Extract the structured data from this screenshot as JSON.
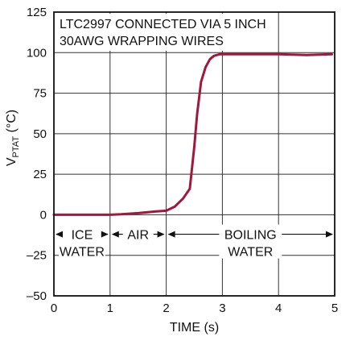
{
  "chart_data": {
    "type": "line",
    "title_lines": [
      "LTC2997 CONNECTED VIA 5 INCH",
      "30AWG WRAPPING WIRES"
    ],
    "xlabel": "TIME (s)",
    "ylabel": {
      "main": "V",
      "sub": "PTAT",
      "unit": " (°C)"
    },
    "xlim": [
      0,
      5
    ],
    "ylim": [
      -50,
      125
    ],
    "xticks": [
      0,
      1,
      2,
      3,
      4,
      5
    ],
    "xtick_labels": [
      "0",
      "1",
      "2",
      "3",
      "4",
      "5"
    ],
    "yticks": [
      -50,
      -25,
      0,
      25,
      50,
      75,
      100,
      125
    ],
    "ytick_labels": [
      "–50",
      "–25",
      "0",
      "25",
      "50",
      "75",
      "100",
      "125"
    ],
    "grid": true,
    "series": [
      {
        "color": "#a0183c",
        "x": [
          0,
          0.5,
          1.0,
          1.2,
          1.5,
          1.8,
          2.0,
          2.15,
          2.3,
          2.42,
          2.5,
          2.55,
          2.62,
          2.7,
          2.78,
          2.85,
          2.95,
          3.05,
          3.3,
          3.6,
          4.0,
          4.5,
          4.95
        ],
        "y": [
          0,
          0,
          0,
          0.3,
          1,
          2,
          2.5,
          5,
          10,
          16,
          42,
          62,
          82,
          91,
          96,
          98,
          99,
          99,
          99,
          99,
          99,
          98.5,
          99
        ]
      }
    ],
    "annotations": [
      {
        "label_lines": [
          "ICE",
          "WATER"
        ],
        "x_range": [
          0,
          1
        ]
      },
      {
        "label_lines": [
          "AIR"
        ],
        "x_range": [
          1,
          2
        ]
      },
      {
        "label_lines": [
          "BOILING",
          "WATER"
        ],
        "x_range": [
          2,
          5
        ]
      }
    ],
    "colors": {
      "series": "#a0183c",
      "grid": "#333333",
      "frame": "#111111"
    }
  }
}
